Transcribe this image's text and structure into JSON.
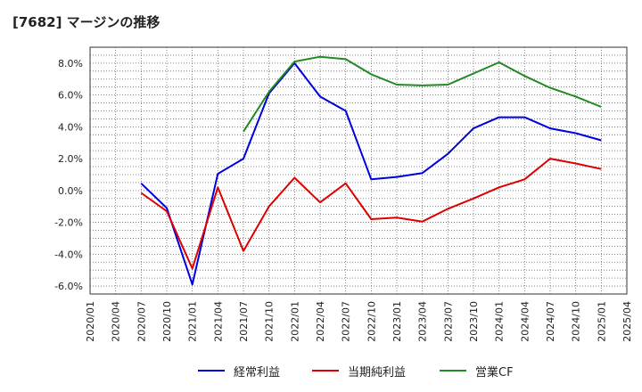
{
  "title": "[7682]  マージンの推移",
  "chart_data": {
    "type": "line",
    "x": [
      "2020/01",
      "2020/04",
      "2020/07",
      "2020/10",
      "2021/01",
      "2021/04",
      "2021/07",
      "2021/10",
      "2022/01",
      "2022/04",
      "2022/07",
      "2022/10",
      "2023/01",
      "2023/04",
      "2023/07",
      "2023/10",
      "2024/01",
      "2024/04",
      "2024/07",
      "2024/10",
      "2025/01",
      "2025/04"
    ],
    "ylim": [
      -6.5,
      9.0
    ],
    "yticks": [
      -6.0,
      -4.0,
      -2.0,
      0.0,
      2.0,
      4.0,
      6.0,
      8.0
    ],
    "ytick_labels": [
      "-6.0%",
      "-4.0%",
      "-2.0%",
      "0.0%",
      "2.0%",
      "4.0%",
      "6.0%",
      "8.0%"
    ],
    "grid": true,
    "legend_position": "bottom",
    "series": [
      {
        "name": "経常利益",
        "color": "#0000dd",
        "values": [
          null,
          null,
          0.45,
          -1.1,
          -5.9,
          1.05,
          2.0,
          6.1,
          8.0,
          5.9,
          5.0,
          0.7,
          0.85,
          1.1,
          2.3,
          3.9,
          4.6,
          4.6,
          3.9,
          3.6,
          3.15,
          null
        ]
      },
      {
        "name": "当期純利益",
        "color": "#dd0000",
        "values": [
          null,
          null,
          -0.15,
          -1.3,
          -4.9,
          0.2,
          -3.8,
          -1.0,
          0.8,
          -0.75,
          0.45,
          -1.8,
          -1.7,
          -1.95,
          -1.15,
          -0.5,
          0.2,
          0.7,
          2.0,
          1.7,
          1.35,
          null
        ]
      },
      {
        "name": "営業CF",
        "color": "#228822",
        "values": [
          null,
          null,
          null,
          null,
          null,
          null,
          3.7,
          6.2,
          8.1,
          8.4,
          8.25,
          7.3,
          6.65,
          6.6,
          6.65,
          7.35,
          8.05,
          7.2,
          6.45,
          5.9,
          5.25,
          null
        ]
      }
    ]
  }
}
